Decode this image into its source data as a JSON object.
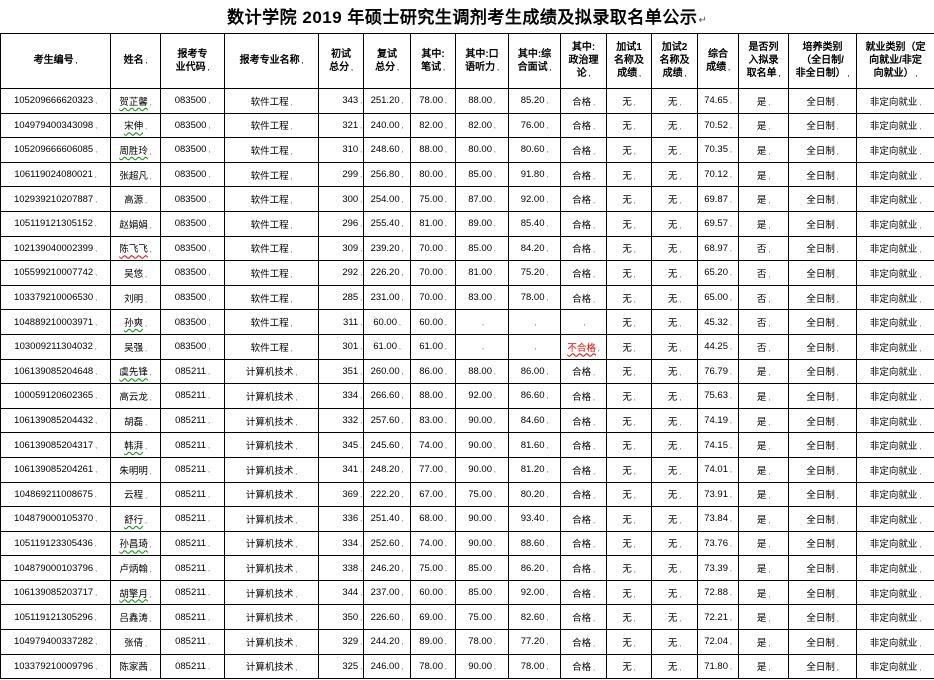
{
  "title": {
    "text": "数计学院 2019 年硕士研究生调剂考生成绩及拟录取名单公示",
    "end_mark": "↵"
  },
  "colors": {
    "border": "#000000",
    "fail_red": "#ff0000",
    "spellcheck_green": "#009000",
    "spellcheck_red": "#e00000"
  },
  "table": {
    "cell_mark": ",",
    "headers": [
      "考生编号",
      "姓名",
      "报考专\n业代码",
      "报考专业名称",
      "初试\n总分",
      "复试\n总分",
      "其中:\n笔试",
      "其中:口\n语听力",
      "其中:综\n合面试",
      "其中:\n政治理\n论",
      "加试1\n名称及\n成绩",
      "加试2\n名称及\n成绩",
      "综合\n成绩",
      "是否列\n入拟录\n取名单",
      "培养类别\n（全日制/\n非全日制）",
      "就业类别（定\n向就业/非定\n向就业）"
    ],
    "rows": [
      {
        "cells": [
          "105209666620323",
          "贺芷馨",
          "083500",
          "软件工程",
          "343",
          "251.20",
          "78.00",
          "88.00",
          "85.20",
          "合格",
          "无",
          "无",
          "74.65",
          "是",
          "全日制",
          "非定向就业"
        ],
        "name_mark": "green",
        "politics_red": false
      },
      {
        "cells": [
          "104979400343098",
          "宋伸",
          "083500",
          "软件工程",
          "321",
          "240.00",
          "82.00",
          "82.00",
          "76.00",
          "合格",
          "无",
          "无",
          "70.52",
          "是",
          "全日制",
          "非定向就业"
        ],
        "name_mark": "green",
        "politics_red": false
      },
      {
        "cells": [
          "105209666606085",
          "周胜玲",
          "083500",
          "软件工程",
          "310",
          "248.60",
          "88.00",
          "80.00",
          "80.60",
          "合格",
          "无",
          "无",
          "70.35",
          "是",
          "全日制",
          "非定向就业"
        ],
        "name_mark": "green",
        "politics_red": false
      },
      {
        "cells": [
          "106119024080021",
          "张超凡",
          "083500",
          "软件工程",
          "299",
          "256.80",
          "80.00",
          "85.00",
          "91.80",
          "合格",
          "无",
          "无",
          "70.12",
          "是",
          "全日制",
          "非定向就业"
        ],
        "name_mark": null,
        "politics_red": false
      },
      {
        "cells": [
          "102939210207887",
          "高源",
          "083500",
          "软件工程",
          "300",
          "254.00",
          "75.00",
          "87.00",
          "92.00",
          "合格",
          "无",
          "无",
          "69.87",
          "是",
          "全日制",
          "非定向就业"
        ],
        "name_mark": null,
        "politics_red": false
      },
      {
        "cells": [
          "105119121305152",
          "赵娟娟",
          "083500",
          "软件工程",
          "296",
          "255.40",
          "81.00",
          "89.00",
          "85.40",
          "合格",
          "无",
          "无",
          "69.57",
          "是",
          "全日制",
          "非定向就业"
        ],
        "name_mark": null,
        "politics_red": false
      },
      {
        "cells": [
          "102139040002399",
          "陈飞飞",
          "083500",
          "软件工程",
          "309",
          "239.20",
          "70.00",
          "85.00",
          "84.20",
          "合格",
          "无",
          "无",
          "68.97",
          "否",
          "全日制",
          "非定向就业"
        ],
        "name_mark": "red",
        "politics_red": false
      },
      {
        "cells": [
          "105599210007742",
          "吴悠",
          "083500",
          "软件工程",
          "292",
          "226.20",
          "70.00",
          "81.00",
          "75.20",
          "合格",
          "无",
          "无",
          "65.20",
          "否",
          "全日制",
          "非定向就业"
        ],
        "name_mark": null,
        "politics_red": false
      },
      {
        "cells": [
          "103379210006530",
          "刘明",
          "083500",
          "软件工程",
          "285",
          "231.00",
          "70.00",
          "83.00",
          "78.00",
          "合格",
          "无",
          "无",
          "65.00",
          "否",
          "全日制",
          "非定向就业"
        ],
        "name_mark": null,
        "politics_red": false
      },
      {
        "cells": [
          "104889210003971",
          "孙爽",
          "083500",
          "软件工程",
          "311",
          "60.00",
          "60.00",
          "",
          "",
          "",
          "无",
          "无",
          "45.32",
          "否",
          "全日制",
          "非定向就业"
        ],
        "name_mark": "green",
        "politics_red": false
      },
      {
        "cells": [
          "103009211304032",
          "吴强",
          "083500",
          "软件工程",
          "301",
          "61.00",
          "61.00",
          "",
          "",
          "不合格",
          "无",
          "无",
          "44.25",
          "否",
          "全日制",
          "非定向就业"
        ],
        "name_mark": null,
        "politics_red": true
      },
      {
        "cells": [
          "106139085204648",
          "虞先锋",
          "085211",
          "计算机技术",
          "351",
          "260.00",
          "86.00",
          "88.00",
          "86.00",
          "合格",
          "无",
          "无",
          "76.79",
          "是",
          "全日制",
          "非定向就业"
        ],
        "name_mark": "green",
        "politics_red": false
      },
      {
        "cells": [
          "100059120602365",
          "高云龙",
          "085211",
          "计算机技术",
          "334",
          "266.60",
          "88.00",
          "92.00",
          "86.60",
          "合格",
          "无",
          "无",
          "75.63",
          "是",
          "全日制",
          "非定向就业"
        ],
        "name_mark": null,
        "politics_red": false
      },
      {
        "cells": [
          "106139085204432",
          "胡磊",
          "085211",
          "计算机技术",
          "332",
          "257.60",
          "83.00",
          "90.00",
          "84.60",
          "合格",
          "无",
          "无",
          "74.19",
          "是",
          "全日制",
          "非定向就业"
        ],
        "name_mark": null,
        "politics_red": false
      },
      {
        "cells": [
          "106139085204317",
          "韩湃",
          "085211",
          "计算机技术",
          "345",
          "245.60",
          "74.00",
          "90.00",
          "81.60",
          "合格",
          "无",
          "无",
          "74.15",
          "是",
          "全日制",
          "非定向就业"
        ],
        "name_mark": "green",
        "politics_red": false
      },
      {
        "cells": [
          "106139085204261",
          "朱明明",
          "085211",
          "计算机技术",
          "341",
          "248.20",
          "77.00",
          "90.00",
          "81.20",
          "合格",
          "无",
          "无",
          "74.01",
          "是",
          "全日制",
          "非定向就业"
        ],
        "name_mark": null,
        "politics_red": false
      },
      {
        "cells": [
          "104869211008675",
          "云程",
          "085211",
          "计算机技术",
          "369",
          "222.20",
          "67.00",
          "75.00",
          "80.20",
          "合格",
          "无",
          "无",
          "73.91",
          "是",
          "全日制",
          "非定向就业"
        ],
        "name_mark": null,
        "politics_red": false
      },
      {
        "cells": [
          "104879000105370",
          "舒行",
          "085211",
          "计算机技术",
          "336",
          "251.40",
          "68.00",
          "90.00",
          "93.40",
          "合格",
          "无",
          "无",
          "73.84",
          "是",
          "全日制",
          "非定向就业"
        ],
        "name_mark": "green",
        "politics_red": false
      },
      {
        "cells": [
          "105119123305436",
          "孙昌琦",
          "085211",
          "计算机技术",
          "334",
          "252.60",
          "74.00",
          "90.00",
          "88.60",
          "合格",
          "无",
          "无",
          "73.76",
          "是",
          "全日制",
          "非定向就业"
        ],
        "name_mark": "green",
        "politics_red": false
      },
      {
        "cells": [
          "104879000103796",
          "卢炳翰",
          "085211",
          "计算机技术",
          "338",
          "246.20",
          "75.00",
          "85.00",
          "86.20",
          "合格",
          "无",
          "无",
          "73.39",
          "是",
          "全日制",
          "非定向就业"
        ],
        "name_mark": null,
        "politics_red": false
      },
      {
        "cells": [
          "106139085203717",
          "胡擎月",
          "085211",
          "计算机技术",
          "344",
          "237.00",
          "60.00",
          "85.00",
          "92.00",
          "合格",
          "无",
          "无",
          "72.88",
          "是",
          "全日制",
          "非定向就业"
        ],
        "name_mark": "green",
        "politics_red": false
      },
      {
        "cells": [
          "105119121305296",
          "吕鑫涛",
          "085211",
          "计算机技术",
          "350",
          "226.60",
          "69.00",
          "75.00",
          "82.60",
          "合格",
          "无",
          "无",
          "72.21",
          "是",
          "全日制",
          "非定向就业"
        ],
        "name_mark": null,
        "politics_red": false
      },
      {
        "cells": [
          "104979400337282",
          "张倩",
          "085211",
          "计算机技术",
          "329",
          "244.20",
          "89.00",
          "78.00",
          "77.20",
          "合格",
          "无",
          "无",
          "72.04",
          "是",
          "全日制",
          "非定向就业"
        ],
        "name_mark": null,
        "politics_red": false
      },
      {
        "cells": [
          "103379210009796",
          "陈家茜",
          "085211",
          "计算机技术",
          "325",
          "246.00",
          "78.00",
          "90.00",
          "78.00",
          "合格",
          "无",
          "无",
          "71.80",
          "是",
          "全日制",
          "非定向就业"
        ],
        "name_mark": null,
        "politics_red": false
      }
    ]
  }
}
